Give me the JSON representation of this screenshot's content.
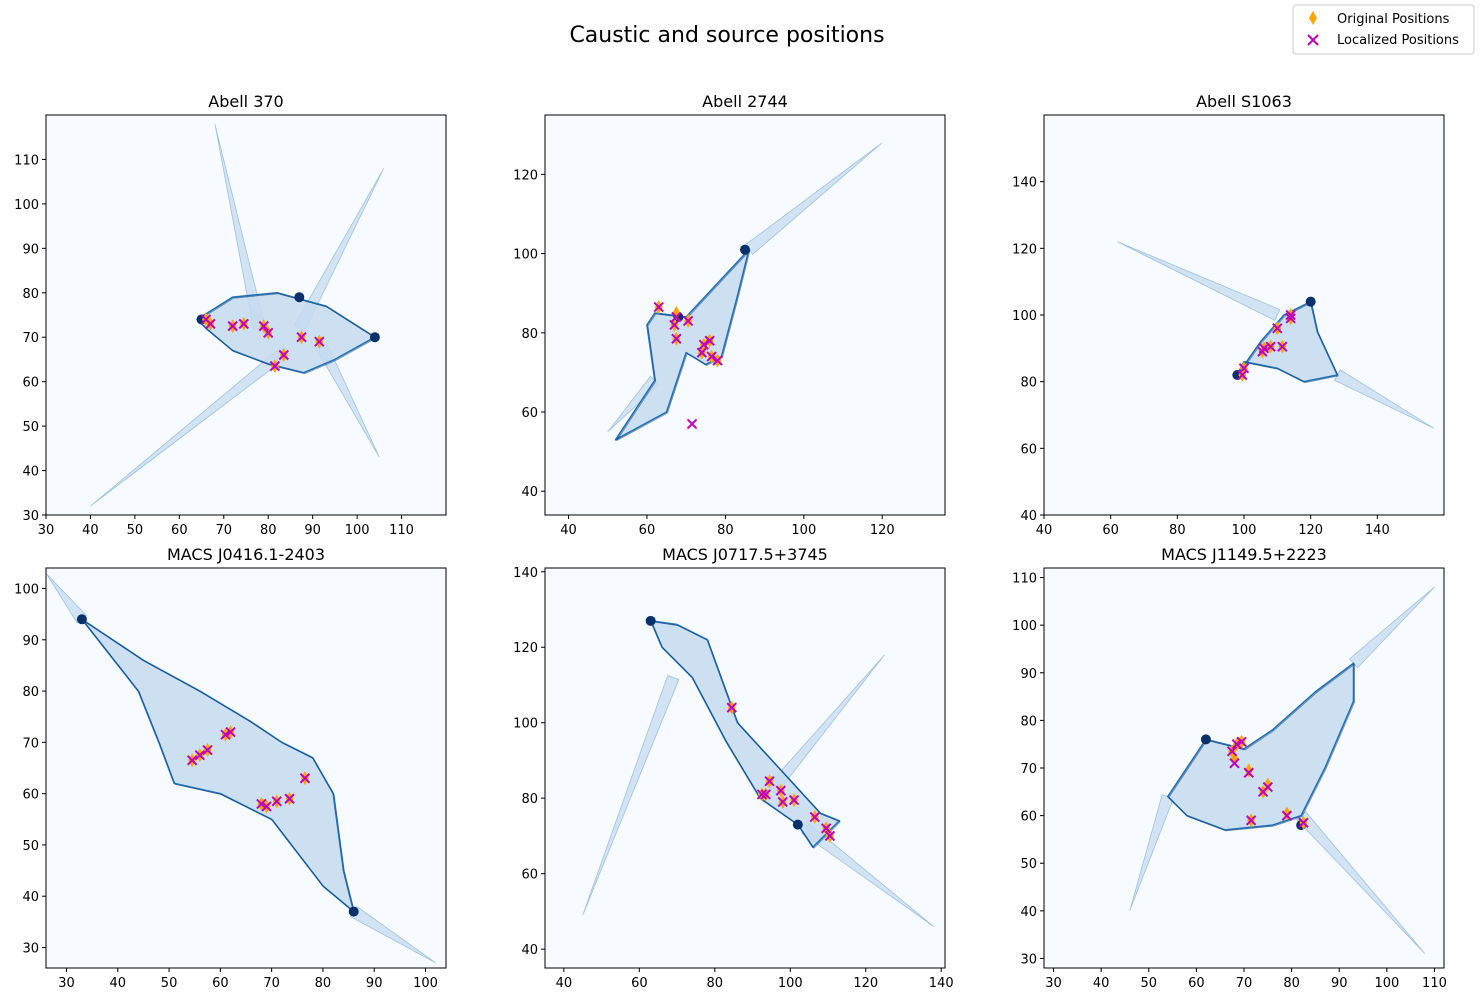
{
  "figure_title": "Caustic and source positions",
  "legend": {
    "entries": [
      {
        "label": "Original Positions",
        "marker": "thin-diamond",
        "color": "#ffa500"
      },
      {
        "label": "Localized Positions",
        "marker": "x",
        "color": "#bf00bf"
      }
    ],
    "placement": "top-right"
  },
  "colors": {
    "caustic_dark": "#08306b",
    "caustic_mid": "#2171b5",
    "caustic_light": "#c6dbef",
    "background": "#f7fbff",
    "original": "#ffa500",
    "localized": "#bf00bf"
  },
  "chart_data": [
    {
      "type": "scatter",
      "title": "Abell 370",
      "xlim": [
        30,
        120
      ],
      "ylim": [
        30,
        120
      ],
      "xticks": [
        30,
        40,
        50,
        60,
        70,
        80,
        90,
        100,
        110
      ],
      "yticks": [
        30,
        40,
        50,
        60,
        70,
        80,
        90,
        100,
        110
      ],
      "caustic": {
        "outer": [
          [
            64,
            74
          ],
          [
            72,
            79
          ],
          [
            82,
            80
          ],
          [
            93,
            77
          ],
          [
            104,
            70
          ],
          [
            95,
            65
          ],
          [
            88,
            62
          ],
          [
            80,
            64
          ],
          [
            72,
            67
          ],
          [
            66,
            72
          ]
        ],
        "arms": [
          [
            [
              87,
              72
            ],
            [
              106,
              108
            ]
          ],
          [
            [
              84,
              67
            ],
            [
              40,
              32
            ]
          ],
          [
            [
              78,
              72
            ],
            [
              68,
              118
            ]
          ],
          [
            [
              92,
              68
            ],
            [
              105,
              43
            ]
          ]
        ],
        "cusps": [
          [
            65,
            74
          ],
          [
            104,
            70
          ],
          [
            87,
            79
          ]
        ]
      },
      "original": [
        [
          66,
          74
        ],
        [
          72,
          72.5
        ],
        [
          74.5,
          73
        ],
        [
          79,
          72.5
        ],
        [
          80,
          71
        ],
        [
          81.5,
          63.5
        ],
        [
          83.5,
          66
        ],
        [
          87.5,
          70
        ],
        [
          91.5,
          69
        ],
        [
          67,
          73
        ]
      ],
      "localized": [
        [
          66,
          74
        ],
        [
          72,
          72.5
        ],
        [
          74.5,
          73
        ],
        [
          79,
          72.5
        ],
        [
          80,
          71
        ],
        [
          81.5,
          63.5
        ],
        [
          83.5,
          66
        ],
        [
          87.5,
          70
        ],
        [
          91.5,
          69
        ],
        [
          67,
          73
        ]
      ]
    },
    {
      "type": "scatter",
      "title": "Abell 2744",
      "xlim": [
        34,
        136
      ],
      "ylim": [
        34,
        135
      ],
      "xticks": [
        40,
        60,
        80,
        100,
        120
      ],
      "yticks": [
        40,
        60,
        80,
        100,
        120
      ],
      "caustic": {
        "outer": [
          [
            62,
            85
          ],
          [
            70,
            84
          ],
          [
            86,
            101
          ],
          [
            83,
            89
          ],
          [
            79,
            74
          ],
          [
            75,
            72
          ],
          [
            70,
            75
          ],
          [
            65,
            60
          ],
          [
            52,
            53
          ],
          [
            62,
            68
          ],
          [
            60,
            82
          ]
        ],
        "arms": [
          [
            [
              86,
              101
            ],
            [
              120,
              128
            ]
          ],
          [
            [
              62,
              68
            ],
            [
              50,
              55
            ]
          ]
        ],
        "cusps": [
          [
            85,
            101
          ],
          [
            68,
            84
          ]
        ]
      },
      "original": [
        [
          63,
          86.5
        ],
        [
          67.5,
          85
        ],
        [
          67,
          82
        ],
        [
          67.5,
          78.5
        ],
        [
          70.5,
          83
        ],
        [
          74,
          75
        ],
        [
          74.5,
          77
        ],
        [
          76,
          78
        ],
        [
          76.5,
          74
        ],
        [
          78,
          73
        ]
      ],
      "localized": [
        [
          63,
          86.5
        ],
        [
          67.5,
          84
        ],
        [
          67,
          82
        ],
        [
          67.5,
          78.5
        ],
        [
          70.5,
          83
        ],
        [
          74,
          75
        ],
        [
          74.5,
          77
        ],
        [
          76,
          78
        ],
        [
          76.5,
          74
        ],
        [
          78,
          73
        ],
        [
          71.5,
          57
        ]
      ]
    },
    {
      "type": "scatter",
      "title": "Abell S1063",
      "xlim": [
        40,
        160
      ],
      "ylim": [
        40,
        160
      ],
      "xticks": [
        40,
        60,
        80,
        100,
        120,
        140
      ],
      "yticks": [
        40,
        60,
        80,
        100,
        120,
        140
      ],
      "caustic": {
        "outer": [
          [
            98,
            82
          ],
          [
            105,
            92
          ],
          [
            112,
            100
          ],
          [
            120,
            104
          ],
          [
            122,
            95
          ],
          [
            128,
            82
          ],
          [
            118,
            80
          ],
          [
            110,
            84
          ],
          [
            100,
            86
          ]
        ],
        "arms": [
          [
            [
              110,
              100
            ],
            [
              62,
              122
            ]
          ],
          [
            [
              128,
              82
            ],
            [
              157,
              66
            ]
          ]
        ],
        "cusps": [
          [
            120,
            104
          ],
          [
            98,
            82
          ]
        ]
      },
      "original": [
        [
          99.5,
          82
        ],
        [
          100,
          84
        ],
        [
          105.5,
          89
        ],
        [
          106,
          90
        ],
        [
          108,
          90.5
        ],
        [
          110,
          96
        ],
        [
          111.5,
          90.5
        ],
        [
          114,
          99
        ],
        [
          114,
          100
        ]
      ],
      "localized": [
        [
          99.5,
          82
        ],
        [
          100,
          84
        ],
        [
          105.5,
          89
        ],
        [
          106,
          90
        ],
        [
          108,
          90.5
        ],
        [
          110,
          96
        ],
        [
          111.5,
          90.5
        ],
        [
          114,
          99
        ],
        [
          114,
          100
        ]
      ]
    },
    {
      "type": "scatter",
      "title": "MACS J0416.1-2403",
      "xlim": [
        26,
        104
      ],
      "ylim": [
        26,
        104
      ],
      "xticks": [
        30,
        40,
        50,
        60,
        70,
        80,
        90,
        100
      ],
      "yticks": [
        30,
        40,
        50,
        60,
        70,
        80,
        90,
        100
      ],
      "caustic": {
        "outer": [
          [
            33,
            94
          ],
          [
            45,
            86
          ],
          [
            56,
            80
          ],
          [
            66,
            74
          ],
          [
            72,
            70
          ],
          [
            78,
            67
          ],
          [
            82,
            60
          ],
          [
            84,
            45
          ],
          [
            86,
            37
          ],
          [
            80,
            42
          ],
          [
            70,
            55
          ],
          [
            60,
            60
          ],
          [
            51,
            62
          ],
          [
            48,
            70
          ],
          [
            44,
            80
          ]
        ],
        "arms": [
          [
            [
              33,
              94
            ],
            [
              26,
              103
            ]
          ],
          [
            [
              86,
              37
            ],
            [
              102,
              27
            ]
          ]
        ],
        "cusps": [
          [
            33,
            94
          ],
          [
            86,
            37
          ]
        ]
      },
      "original": [
        [
          54.5,
          66.5
        ],
        [
          56,
          67.5
        ],
        [
          57.5,
          68.5
        ],
        [
          61,
          71.5
        ],
        [
          62,
          72
        ],
        [
          68,
          58
        ],
        [
          69,
          57.5
        ],
        [
          71,
          58.5
        ],
        [
          73.5,
          59
        ],
        [
          76.5,
          63
        ]
      ],
      "localized": [
        [
          54.5,
          66.5
        ],
        [
          56,
          67.5
        ],
        [
          57.5,
          68.5
        ],
        [
          61,
          71.5
        ],
        [
          62,
          72
        ],
        [
          68,
          58
        ],
        [
          69,
          57.5
        ],
        [
          71,
          58.5
        ],
        [
          73.5,
          59
        ],
        [
          76.5,
          63
        ]
      ]
    },
    {
      "type": "scatter",
      "title": "MACS J0717.5+3745",
      "xlim": [
        35,
        141
      ],
      "ylim": [
        35,
        141
      ],
      "xticks": [
        40,
        60,
        80,
        100,
        120,
        140
      ],
      "yticks": [
        40,
        60,
        80,
        100,
        120,
        140
      ],
      "caustic": {
        "outer": [
          [
            63,
            127
          ],
          [
            70,
            126
          ],
          [
            78,
            122
          ],
          [
            86,
            100
          ],
          [
            97,
            88
          ],
          [
            108,
            76
          ],
          [
            113,
            74
          ],
          [
            106,
            67
          ],
          [
            102,
            73
          ],
          [
            92,
            80
          ],
          [
            83,
            95
          ],
          [
            74,
            112
          ],
          [
            66,
            120
          ]
        ],
        "arms": [
          [
            [
              69,
              112
            ],
            [
              45,
              49
            ]
          ],
          [
            [
              95,
              82
            ],
            [
              125,
              118
            ]
          ],
          [
            [
              104,
              72
            ],
            [
              138,
              46
            ]
          ]
        ],
        "cusps": [
          [
            63,
            127
          ],
          [
            102,
            73
          ]
        ]
      },
      "original": [
        [
          84.5,
          104
        ],
        [
          92.5,
          81
        ],
        [
          93.5,
          81
        ],
        [
          94.5,
          84.5
        ],
        [
          97.5,
          82
        ],
        [
          98,
          79
        ],
        [
          101,
          79.5
        ],
        [
          106.5,
          75
        ],
        [
          109.5,
          72
        ],
        [
          110.5,
          70
        ]
      ],
      "localized": [
        [
          84.5,
          104
        ],
        [
          92.5,
          81
        ],
        [
          93.5,
          81
        ],
        [
          94.5,
          84.5
        ],
        [
          97.5,
          82
        ],
        [
          98,
          79
        ],
        [
          101,
          79.5
        ],
        [
          106.5,
          75
        ],
        [
          109.5,
          72
        ],
        [
          110.5,
          70
        ]
      ]
    },
    {
      "type": "scatter",
      "title": "MACS J1149.5+2223",
      "xlim": [
        28,
        112
      ],
      "ylim": [
        28,
        112
      ],
      "xticks": [
        30,
        40,
        50,
        60,
        70,
        80,
        90,
        100,
        110
      ],
      "yticks": [
        30,
        40,
        50,
        60,
        70,
        80,
        90,
        100,
        110
      ],
      "caustic": {
        "outer": [
          [
            62,
            76
          ],
          [
            70,
            74
          ],
          [
            76,
            78
          ],
          [
            85,
            86
          ],
          [
            93,
            92
          ],
          [
            93,
            84
          ],
          [
            87,
            70
          ],
          [
            82,
            60
          ],
          [
            76,
            58
          ],
          [
            66,
            57
          ],
          [
            58,
            60
          ],
          [
            54,
            64
          ],
          [
            58,
            70
          ]
        ],
        "arms": [
          [
            [
              54,
              64
            ],
            [
              46,
              40
            ]
          ],
          [
            [
              93,
              92
            ],
            [
              110,
              108
            ]
          ],
          [
            [
              82,
              60
            ],
            [
              108,
              31
            ]
          ]
        ],
        "cusps": [
          [
            62,
            76
          ],
          [
            82,
            58
          ]
        ]
      },
      "original": [
        [
          67.5,
          73.5
        ],
        [
          68,
          72
        ],
        [
          68.5,
          75
        ],
        [
          69.5,
          75.5
        ],
        [
          71,
          69.5
        ],
        [
          71.5,
          59
        ],
        [
          74,
          65
        ],
        [
          75,
          66.5
        ],
        [
          79,
          60.5
        ],
        [
          82.5,
          58.5
        ]
      ],
      "localized": [
        [
          67.5,
          73.5
        ],
        [
          68,
          71
        ],
        [
          68.5,
          75
        ],
        [
          69.5,
          75.5
        ],
        [
          71,
          69
        ],
        [
          71.5,
          59
        ],
        [
          74,
          65
        ],
        [
          75,
          66
        ],
        [
          79,
          60
        ],
        [
          82.5,
          58.5
        ]
      ]
    }
  ]
}
